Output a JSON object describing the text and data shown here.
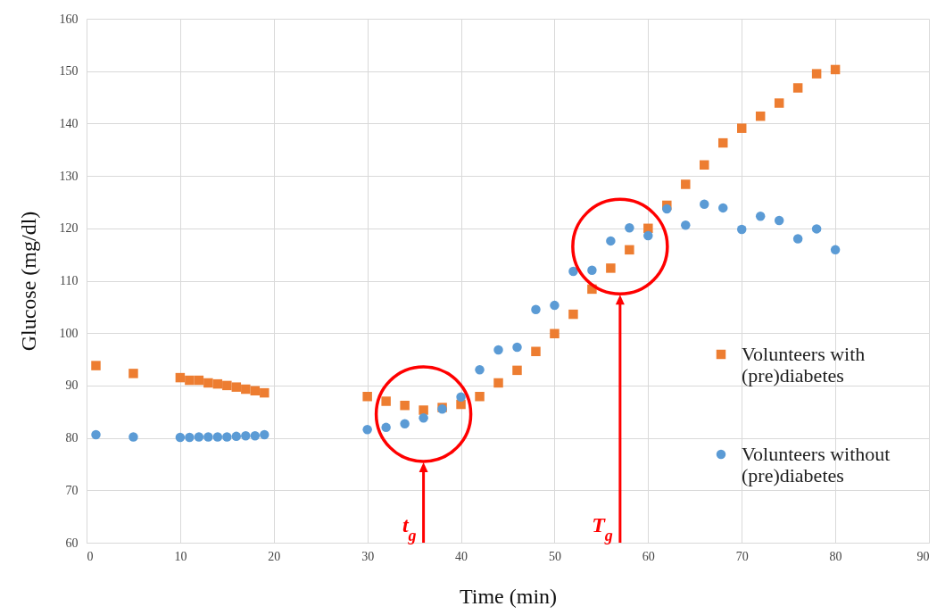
{
  "chart_data": {
    "type": "scatter",
    "xlabel": "Time (min)",
    "ylabel": "Glucose (mg/dl)",
    "x": [
      1,
      5,
      10,
      11,
      12,
      13,
      14,
      15,
      16,
      17,
      18,
      19,
      30,
      32,
      34,
      36,
      38,
      40,
      42,
      44,
      46,
      48,
      50,
      52,
      54,
      56,
      58,
      60,
      62,
      64,
      66,
      68,
      70,
      72,
      74,
      76,
      78,
      80
    ],
    "series": [
      {
        "name": "Volunteers with (pre)diabetes",
        "color": "#ed7d31",
        "marker": "square",
        "values": [
          93.8,
          92.3,
          91.5,
          91.0,
          91.0,
          90.5,
          90.3,
          90.0,
          89.7,
          89.3,
          89.0,
          88.6,
          87.9,
          87.0,
          86.2,
          85.3,
          85.8,
          86.4,
          87.9,
          90.5,
          92.9,
          96.5,
          99.9,
          103.6,
          108.4,
          112.4,
          115.9,
          120.0,
          124.4,
          128.4,
          132.1,
          136.3,
          139.1,
          141.4,
          143.9,
          146.8,
          149.5,
          150.3
        ]
      },
      {
        "name": "Volunteers without (pre)diabetes",
        "color": "#5b9bd5",
        "marker": "circle",
        "values": [
          80.6,
          80.2,
          80.1,
          80.1,
          80.2,
          80.2,
          80.2,
          80.2,
          80.3,
          80.4,
          80.4,
          80.6,
          81.6,
          82.0,
          82.7,
          83.8,
          85.5,
          87.8,
          93.0,
          96.8,
          97.3,
          104.5,
          105.3,
          111.8,
          112.0,
          117.6,
          120.1,
          118.6,
          123.7,
          120.6,
          124.6,
          123.9,
          119.8,
          122.3,
          121.5,
          118.0,
          119.9,
          115.9
        ]
      }
    ],
    "xlim": [
      0,
      90
    ],
    "xticks": [
      0,
      10,
      20,
      30,
      40,
      50,
      60,
      70,
      80,
      90
    ],
    "ylim": [
      60,
      160
    ],
    "yticks": [
      60,
      70,
      80,
      90,
      100,
      110,
      120,
      130,
      140,
      150,
      160
    ],
    "grid": true,
    "legend": "right",
    "ref_lines": [
      {
        "axis": "x",
        "value": 36,
        "label": "t$_{g}$",
        "color": "#ff0000"
      },
      {
        "axis": "x",
        "value": 57,
        "label": "T$_{g}$",
        "color": "#ff0000"
      }
    ]
  }
}
